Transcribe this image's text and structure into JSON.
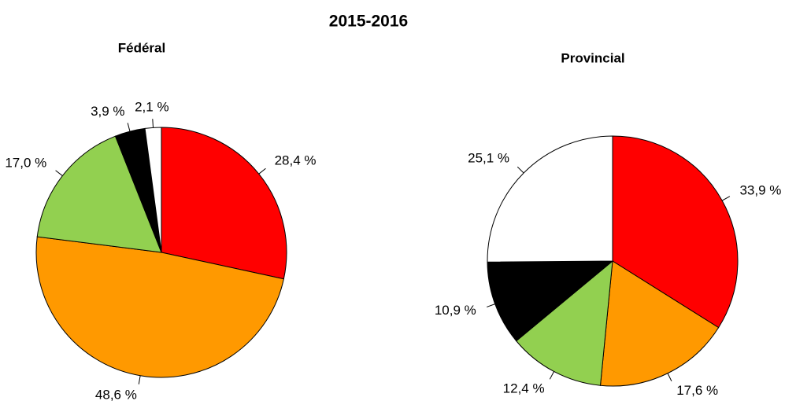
{
  "title": "2015-2016",
  "chart_data": [
    {
      "type": "pie",
      "title": "Fédéral",
      "values": [
        28.4,
        48.6,
        17.0,
        3.9,
        2.1
      ],
      "value_labels": [
        "28,4 %",
        "48,6 %",
        "17,0 %",
        "3,9 %",
        "2,1 %"
      ],
      "colors": [
        "#ff0000",
        "#ff9900",
        "#92d050",
        "#000000",
        "#ffffff"
      ]
    },
    {
      "type": "pie",
      "title": "Provincial",
      "values": [
        33.9,
        17.6,
        12.4,
        10.9,
        25.1
      ],
      "value_labels": [
        "33,9 %",
        "17,6 %",
        "12,4 %",
        "10,9 %",
        "25,1 %"
      ],
      "colors": [
        "#ff0000",
        "#ff9900",
        "#92d050",
        "#000000",
        "#ffffff"
      ]
    }
  ]
}
